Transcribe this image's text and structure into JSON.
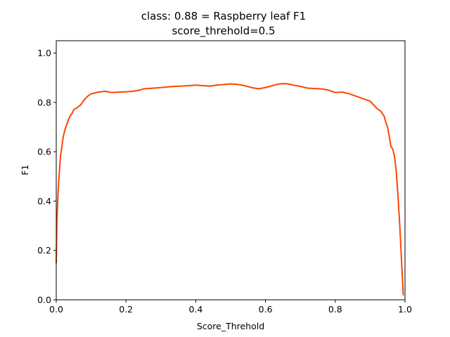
{
  "chart_data": {
    "type": "line",
    "title": "class: 0.88 = Raspberry leaf F1",
    "subtitle": "score_threhold=0.5",
    "xlabel": "Score_Threhold",
    "ylabel": "F1",
    "xlim": [
      0,
      1
    ],
    "ylim": [
      0,
      1.05
    ],
    "xticks": [
      "0.0",
      "0.2",
      "0.4",
      "0.6",
      "0.8",
      "1.0"
    ],
    "xtick_values": [
      0,
      0.2,
      0.4,
      0.6,
      0.8,
      1.0
    ],
    "yticks": [
      "0.0",
      "0.2",
      "0.4",
      "0.6",
      "0.8",
      "1.0"
    ],
    "ytick_values": [
      0,
      0.2,
      0.4,
      0.6,
      0.8,
      1.0
    ],
    "grid": false,
    "series": [
      {
        "color": "#ff4500",
        "x": [
          0.0,
          0.002,
          0.005,
          0.008,
          0.012,
          0.016,
          0.02,
          0.025,
          0.03,
          0.035,
          0.04,
          0.045,
          0.05,
          0.055,
          0.06,
          0.065,
          0.07,
          0.075,
          0.08,
          0.09,
          0.1,
          0.11,
          0.12,
          0.14,
          0.16,
          0.18,
          0.2,
          0.22,
          0.24,
          0.25,
          0.28,
          0.3,
          0.32,
          0.34,
          0.36,
          0.38,
          0.4,
          0.42,
          0.44,
          0.46,
          0.48,
          0.5,
          0.52,
          0.54,
          0.56,
          0.58,
          0.6,
          0.62,
          0.64,
          0.66,
          0.68,
          0.7,
          0.72,
          0.74,
          0.76,
          0.78,
          0.8,
          0.82,
          0.84,
          0.86,
          0.88,
          0.9,
          0.91,
          0.92,
          0.93,
          0.94,
          0.945,
          0.95,
          0.955,
          0.96,
          0.965,
          0.97,
          0.975,
          0.98,
          0.985,
          0.99,
          0.995
        ],
        "values": [
          0.15,
          0.32,
          0.43,
          0.5,
          0.58,
          0.62,
          0.66,
          0.69,
          0.71,
          0.73,
          0.745,
          0.755,
          0.77,
          0.775,
          0.778,
          0.785,
          0.79,
          0.8,
          0.81,
          0.825,
          0.835,
          0.838,
          0.842,
          0.845,
          0.84,
          0.842,
          0.843,
          0.845,
          0.85,
          0.855,
          0.858,
          0.86,
          0.863,
          0.865,
          0.866,
          0.868,
          0.87,
          0.868,
          0.866,
          0.87,
          0.872,
          0.875,
          0.873,
          0.868,
          0.86,
          0.855,
          0.86,
          0.868,
          0.875,
          0.876,
          0.87,
          0.865,
          0.858,
          0.856,
          0.855,
          0.85,
          0.84,
          0.842,
          0.835,
          0.825,
          0.815,
          0.805,
          0.79,
          0.775,
          0.765,
          0.745,
          0.72,
          0.7,
          0.66,
          0.62,
          0.61,
          0.58,
          0.52,
          0.42,
          0.3,
          0.16,
          0.02
        ]
      }
    ]
  }
}
